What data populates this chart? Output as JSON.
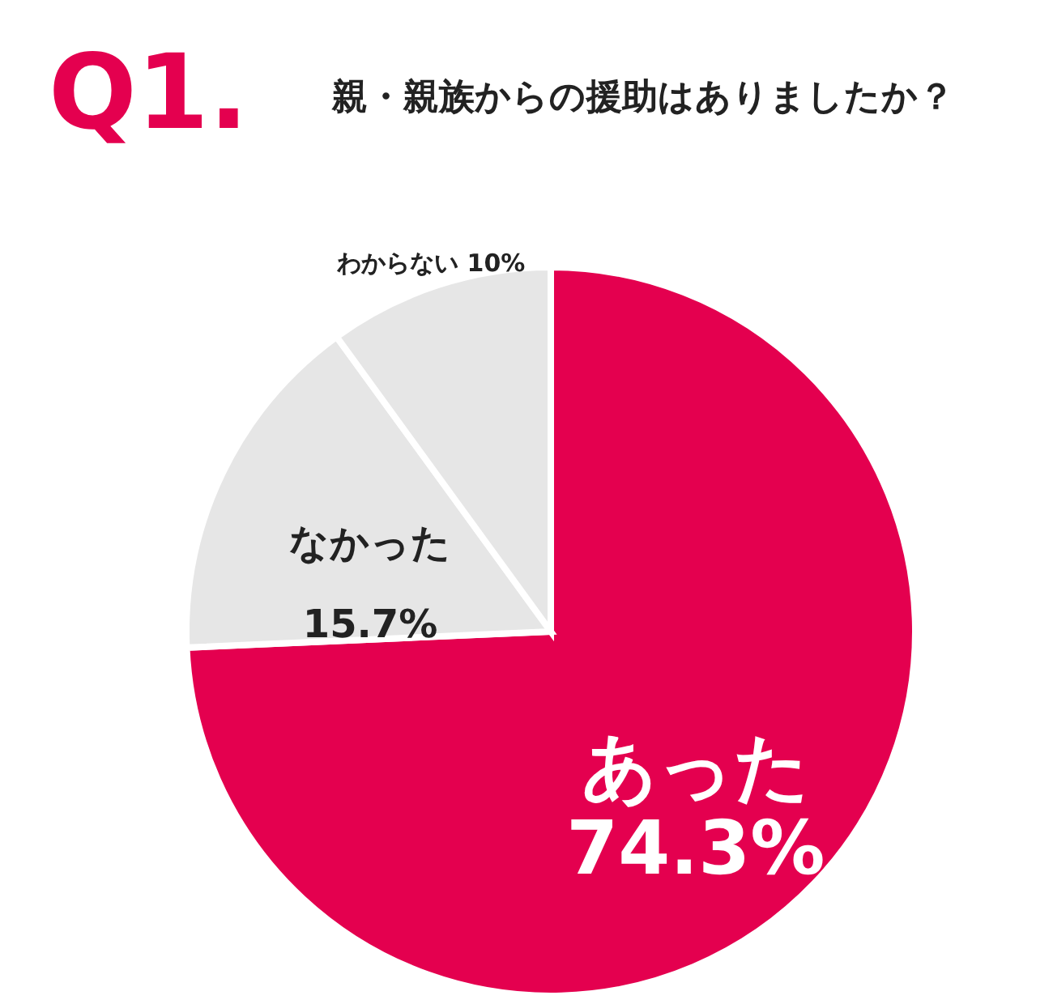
{
  "chart_data": {
    "type": "pie",
    "title": "Q1.",
    "subtitle": "親・親族からの援助はありましたか？",
    "categories": [
      "あった",
      "なかった",
      "わからない"
    ],
    "values": [
      74.3,
      15.7,
      10
    ],
    "colors": [
      "#e4004f",
      "#e6e6e6",
      "#e6e6e6"
    ],
    "value_labels": [
      "74.3%",
      "15.7%",
      "10%"
    ],
    "legend": false
  }
}
